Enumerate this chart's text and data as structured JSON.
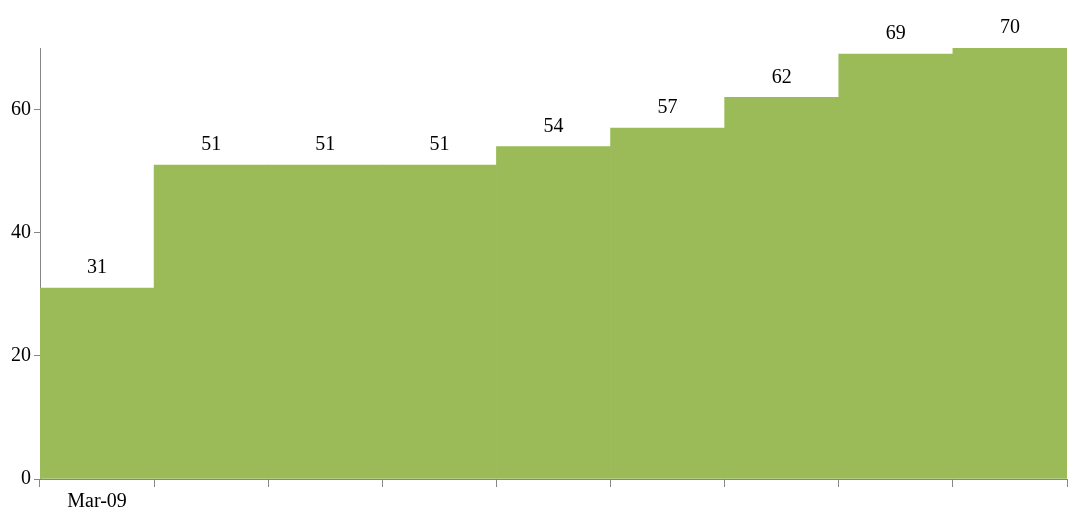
{
  "chart_data": {
    "type": "bar",
    "categories": [
      "Mar-09",
      null,
      null,
      null,
      null,
      null,
      null,
      null,
      null
    ],
    "values": [
      31,
      51,
      51,
      51,
      54,
      57,
      62,
      69,
      70
    ],
    "color": "#9bbb59",
    "ylim": [
      0,
      70
    ],
    "yticks": [
      0,
      20,
      40,
      60
    ],
    "grid": false,
    "legend": false,
    "data_labels": true
  }
}
